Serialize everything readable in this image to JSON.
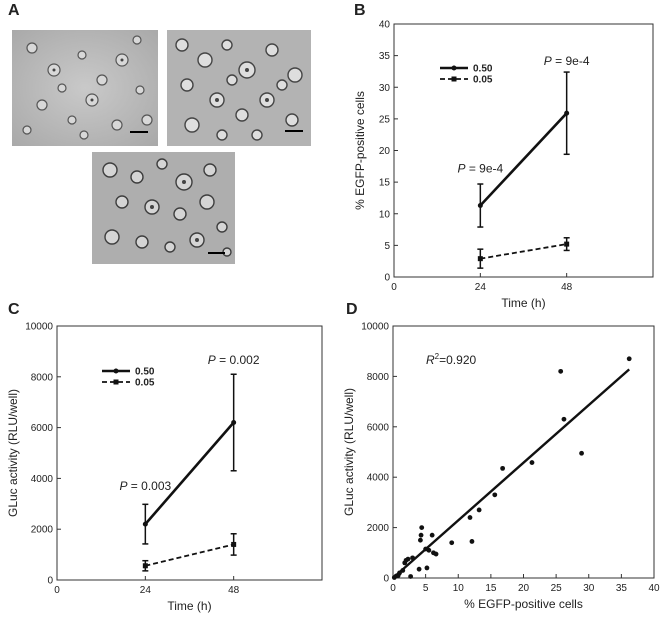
{
  "panels": {
    "A": {
      "letter": "A"
    },
    "B": {
      "letter": "B"
    },
    "C": {
      "letter": "C"
    },
    "D": {
      "letter": "D"
    }
  },
  "chart_data": [
    {
      "panel": "B",
      "type": "line",
      "xlabel": "Time (h)",
      "ylabel": "% EGFP-positive cells",
      "xlim": [
        0,
        72
      ],
      "ylim": [
        0,
        40
      ],
      "xticks": [
        "0",
        "24",
        "48"
      ],
      "xtick_values": [
        0,
        24,
        48
      ],
      "yticks": [
        "0",
        "5",
        "10",
        "15",
        "20",
        "25",
        "30",
        "35",
        "40"
      ],
      "ytick_values": [
        0,
        5,
        10,
        15,
        20,
        25,
        30,
        35,
        40
      ],
      "legend_position": "upper-left",
      "series": [
        {
          "name": "0.50",
          "style": "solid",
          "x": [
            24,
            48
          ],
          "y": [
            11.3,
            25.9
          ],
          "err": [
            3.4,
            6.5
          ]
        },
        {
          "name": "0.05",
          "style": "dashed",
          "x": [
            24,
            48
          ],
          "y": [
            2.9,
            5.2
          ],
          "err": [
            1.5,
            1.0
          ]
        }
      ],
      "annotations": [
        {
          "italic": "P",
          "rest": " = 9e-4",
          "x": 24,
          "y": 16.5
        },
        {
          "italic": "P",
          "rest": " = 9e-4",
          "x": 48,
          "y": 33.5
        }
      ]
    },
    {
      "panel": "C",
      "type": "line",
      "xlabel": "Time (h)",
      "ylabel": "GLuc activity (RLU/well)",
      "xlim": [
        0,
        72
      ],
      "ylim": [
        0,
        10000
      ],
      "xticks": [
        "0",
        "24",
        "48"
      ],
      "xtick_values": [
        0,
        24,
        48
      ],
      "yticks": [
        "0",
        "2000",
        "4000",
        "6000",
        "8000",
        "10000"
      ],
      "ytick_values": [
        0,
        2000,
        4000,
        6000,
        8000,
        10000
      ],
      "legend_position": "upper-left",
      "series": [
        {
          "name": "0.50",
          "style": "solid",
          "x": [
            24,
            48
          ],
          "y": [
            2200,
            6200
          ],
          "err": [
            780,
            1900
          ]
        },
        {
          "name": "0.05",
          "style": "dashed",
          "x": [
            24,
            48
          ],
          "y": [
            560,
            1400
          ],
          "err": [
            200,
            420
          ]
        }
      ],
      "annotations": [
        {
          "italic": "P",
          "rest": " = 0.003",
          "x": 24,
          "y": 3550
        },
        {
          "italic": "P",
          "rest": " = 0.002",
          "x": 48,
          "y": 8500
        }
      ]
    },
    {
      "panel": "D",
      "type": "scatter",
      "xlabel": "% EGFP-positive cells",
      "ylabel": "GLuc activity (RLU/well)",
      "xlim": [
        0,
        40
      ],
      "ylim": [
        0,
        10000
      ],
      "xticks": [
        "0",
        "5",
        "10",
        "15",
        "20",
        "25",
        "30",
        "35",
        "40"
      ],
      "xtick_values": [
        0,
        5,
        10,
        15,
        20,
        25,
        30,
        35,
        40
      ],
      "yticks": [
        "0",
        "2000",
        "4000",
        "6000",
        "8000",
        "10000"
      ],
      "ytick_values": [
        0,
        2000,
        4000,
        6000,
        8000,
        10000
      ],
      "annotation": {
        "base": "R",
        "sup": "2",
        "rest": "=0.920"
      },
      "fit_line": {
        "x": [
          0,
          36.2
        ],
        "y": [
          0,
          8280
        ]
      },
      "points": [
        [
          0.2,
          20
        ],
        [
          0.5,
          80
        ],
        [
          0.8,
          100
        ],
        [
          1.0,
          200
        ],
        [
          1.5,
          300
        ],
        [
          1.8,
          600
        ],
        [
          2.0,
          700
        ],
        [
          2.3,
          750
        ],
        [
          3.0,
          800
        ],
        [
          2.7,
          60
        ],
        [
          4.0,
          350
        ],
        [
          4.2,
          1500
        ],
        [
          4.3,
          1700
        ],
        [
          4.4,
          2000
        ],
        [
          5.0,
          1150
        ],
        [
          5.5,
          1100
        ],
        [
          6.0,
          1700
        ],
        [
          6.2,
          1000
        ],
        [
          6.6,
          950
        ],
        [
          5.2,
          400
        ],
        [
          9.0,
          1400
        ],
        [
          11.8,
          2400
        ],
        [
          12.1,
          1450
        ],
        [
          13.2,
          2700
        ],
        [
          15.6,
          3300
        ],
        [
          16.8,
          4350
        ],
        [
          21.3,
          4580
        ],
        [
          25.7,
          8200
        ],
        [
          26.2,
          6300
        ],
        [
          28.9,
          4950
        ],
        [
          36.2,
          8700
        ]
      ]
    }
  ]
}
